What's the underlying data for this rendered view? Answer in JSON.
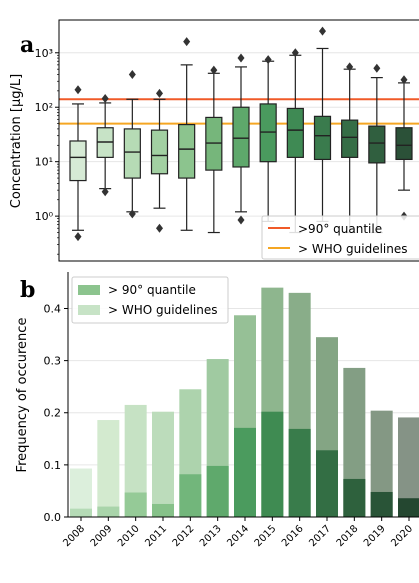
{
  "panel_labels": [
    "a",
    "b"
  ],
  "chart_data": [
    {
      "type": "box",
      "panel": "a",
      "ylabel": "Concentration [µg/L]",
      "yscale": "log",
      "ylim": [
        0.15,
        4000
      ],
      "ytick_values": [
        1,
        10,
        100,
        1000
      ],
      "ytick_labels": [
        "10⁰",
        "10¹",
        "10²",
        "10³"
      ],
      "categories": [
        "2008",
        "2009",
        "2010",
        "2011",
        "2012",
        "2013",
        "2014",
        "2015",
        "2016",
        "2017",
        "2018",
        "2019",
        "2020"
      ],
      "boxes": [
        {
          "q1": 4.5,
          "median": 12,
          "q3": 24,
          "whisker_low": 0.55,
          "whisker_high": 115,
          "fliers": [
            210,
            0.42
          ]
        },
        {
          "q1": 12,
          "median": 23,
          "q3": 42,
          "whisker_low": 3.2,
          "whisker_high": 120,
          "fliers": [
            145,
            2.8
          ]
        },
        {
          "q1": 5,
          "median": 15,
          "q3": 40,
          "whisker_low": 1.2,
          "whisker_high": 140,
          "fliers": [
            400,
            1.1
          ]
        },
        {
          "q1": 6,
          "median": 13,
          "q3": 38,
          "whisker_low": 1.4,
          "whisker_high": 140,
          "fliers": [
            180,
            0.6
          ]
        },
        {
          "q1": 5,
          "median": 17,
          "q3": 48,
          "whisker_low": 0.55,
          "whisker_high": 600,
          "fliers": [
            1600
          ]
        },
        {
          "q1": 7,
          "median": 22,
          "q3": 65,
          "whisker_low": 0.5,
          "whisker_high": 420,
          "fliers": [
            480
          ]
        },
        {
          "q1": 8,
          "median": 27,
          "q3": 100,
          "whisker_low": 1.2,
          "whisker_high": 550,
          "fliers": [
            800,
            0.85
          ]
        },
        {
          "q1": 10,
          "median": 35,
          "q3": 115,
          "whisker_low": 0.8,
          "whisker_high": 700,
          "fliers": [
            750
          ]
        },
        {
          "q1": 12,
          "median": 38,
          "q3": 95,
          "whisker_low": 0.5,
          "whisker_high": 900,
          "fliers": [
            1000
          ]
        },
        {
          "q1": 11,
          "median": 30,
          "q3": 68,
          "whisker_low": 0.8,
          "whisker_high": 1200,
          "fliers": [
            2500
          ]
        },
        {
          "q1": 12,
          "median": 28,
          "q3": 58,
          "whisker_low": 0.5,
          "whisker_high": 500,
          "fliers": [
            550
          ]
        },
        {
          "q1": 9.5,
          "median": 22,
          "q3": 45,
          "whisker_low": 0.5,
          "whisker_high": 350,
          "fliers": [
            520
          ]
        },
        {
          "q1": 11,
          "median": 20,
          "q3": 42,
          "whisker_low": 3,
          "whisker_high": 280,
          "fliers": [
            320,
            1.0
          ]
        }
      ],
      "hlines": [
        {
          "name": ">90° quantile",
          "value": 140,
          "color": "#f05a28"
        },
        {
          "name": "> WHO guidelines",
          "value": 50,
          "color": "#f5a623"
        }
      ],
      "box_colors": [
        "#d6ead5",
        "#c7e3c6",
        "#b6dbb5",
        "#a2d0a2",
        "#8cc48e",
        "#76b67b",
        "#5ea86b",
        "#4a9a5e",
        "#3f8a54",
        "#3a7b4d",
        "#356d46",
        "#305f3f",
        "#2b5138"
      ],
      "legend": {
        "position": "lower-right"
      }
    },
    {
      "type": "bar",
      "panel": "b",
      "ylabel": "Frequency of occurence",
      "ylim": [
        0,
        0.47
      ],
      "yticks": [
        "0.0",
        "0.1",
        "0.2",
        "0.3",
        "0.4"
      ],
      "ytick_values": [
        0,
        0.1,
        0.2,
        0.3,
        0.4
      ],
      "categories": [
        "2008",
        "2009",
        "2010",
        "2011",
        "2012",
        "2013",
        "2014",
        "2015",
        "2016",
        "2017",
        "2018",
        "2019",
        "2020"
      ],
      "series": [
        {
          "name": "> 90° quantile",
          "color": "#8cc48e",
          "values": [
            0.016,
            0.02,
            0.047,
            0.025,
            0.082,
            0.098,
            0.171,
            0.202,
            0.169,
            0.128,
            0.073,
            0.048,
            0.036
          ]
        },
        {
          "name": "> WHO guidelines",
          "color": "#c7e3c6",
          "values": [
            0.093,
            0.186,
            0.215,
            0.202,
            0.245,
            0.303,
            0.387,
            0.44,
            0.43,
            0.345,
            0.286,
            0.204,
            0.191
          ]
        }
      ],
      "bar_colors_dark": [
        "#b5dbb6",
        "#a9d4aa",
        "#95ca97",
        "#86c189",
        "#72b67b",
        "#5fa96c",
        "#4b9b5e",
        "#3f8b52",
        "#397c4b",
        "#336e44",
        "#2e613d",
        "#295437",
        "#244730"
      ],
      "bar_colors_light": [
        "#dcefdc",
        "#d3eacf",
        "#c6e2c4",
        "#bcdcbb",
        "#add3ad",
        "#a0caa1",
        "#96c096",
        "#8eb68e",
        "#89ad89",
        "#84a584",
        "#839e84",
        "#849884",
        "#859386"
      ],
      "legend": {
        "position": "top-left"
      }
    }
  ]
}
